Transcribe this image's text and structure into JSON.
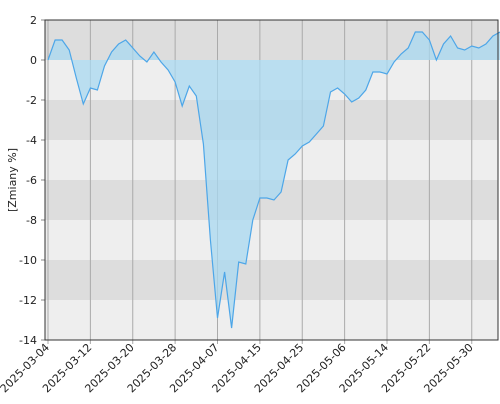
{
  "chart_data": {
    "type": "area",
    "y_label": "[Zmiany %]",
    "categories": [
      "2025-03-04",
      null,
      null,
      null,
      null,
      null,
      "2025-03-12",
      null,
      null,
      null,
      null,
      null,
      "2025-03-20",
      null,
      null,
      null,
      null,
      null,
      "2025-03-28",
      null,
      null,
      null,
      null,
      null,
      "2025-04-07",
      null,
      null,
      null,
      null,
      null,
      "2025-04-15",
      null,
      null,
      null,
      null,
      null,
      "2025-04-25",
      null,
      null,
      null,
      null,
      null,
      "2025-05-06",
      null,
      null,
      null,
      null,
      null,
      "2025-05-14",
      null,
      null,
      null,
      null,
      null,
      "2025-05-22",
      null,
      null,
      null,
      null,
      null,
      "2025-05-30",
      null,
      null,
      null,
      null
    ],
    "values": [
      0,
      1,
      1,
      0.5,
      -0.9,
      -2.2,
      -1.4,
      -1.5,
      -0.3,
      0.4,
      0.8,
      1.0,
      0.6,
      0.2,
      -0.1,
      0.4,
      -0.1,
      -0.5,
      -1.1,
      -2.3,
      -1.3,
      -1.8,
      -4.2,
      -9,
      -12.9,
      -10.6,
      -13.4,
      -10.1,
      -10.2,
      -8,
      -6.9,
      -6.9,
      -7,
      -6.6,
      -5,
      -4.7,
      -4.3,
      -4.1,
      -3.7,
      -3.3,
      -1.6,
      -1.4,
      -1.7,
      -2.1,
      -1.9,
      -1.5,
      -0.6,
      -0.6,
      -0.7,
      -0.1,
      0.3,
      0.6,
      1.4,
      1.4,
      1.0,
      0,
      0.8,
      1.2,
      0.6,
      0.5,
      0.7,
      0.6,
      0.8,
      1.2,
      1.4
    ],
    "color": "#4da6e8",
    "fill": "#a8d8f0",
    "ylim": [
      -14,
      2
    ],
    "yticks": [
      -14,
      -12,
      -10,
      -8,
      -6,
      -4,
      -2,
      0,
      2
    ],
    "band_colors": [
      "#eeeeee",
      "#dddddd"
    ]
  }
}
